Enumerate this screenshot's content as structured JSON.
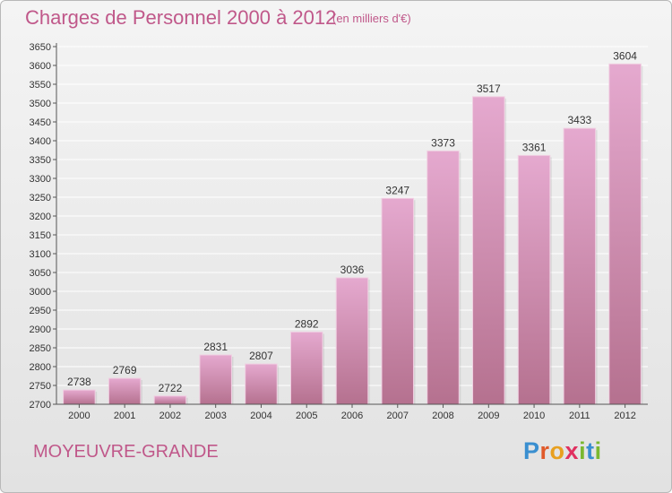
{
  "header": {
    "title": "Charges de Personnel 2000 à 2012",
    "subtitle": "(en milliers d'€)"
  },
  "footer": {
    "commune": "MOYEUVRE-GRANDE",
    "logo_letters": [
      "P",
      "r",
      "o",
      "x",
      "i",
      "t",
      "i"
    ],
    "logo_colors": [
      "#3a8fd0",
      "#e05a2a",
      "#e8a020",
      "#e03060",
      "#7ab830",
      "#3a8fd0",
      "#7ab830"
    ]
  },
  "colors": {
    "bar_top": "#e5a9cf",
    "bar_bottom": "#b5718f",
    "bar_edge": "#f0d0e2",
    "grid": "#ffffff",
    "axis": "#555555",
    "text": "#333333"
  },
  "chart_data": {
    "type": "bar",
    "title": "Charges de Personnel 2000 à 2012",
    "subtitle": "(en milliers d'€)",
    "categories": [
      "2000",
      "2001",
      "2002",
      "2003",
      "2004",
      "2005",
      "2006",
      "2007",
      "2008",
      "2009",
      "2010",
      "2011",
      "2012"
    ],
    "values": [
      2738,
      2769,
      2722,
      2831,
      2807,
      2892,
      3036,
      3247,
      3373,
      3517,
      3361,
      3433,
      3604
    ],
    "ylim": [
      2700,
      3650
    ],
    "ytick_step": 50,
    "grid": true,
    "data_labels": true
  }
}
